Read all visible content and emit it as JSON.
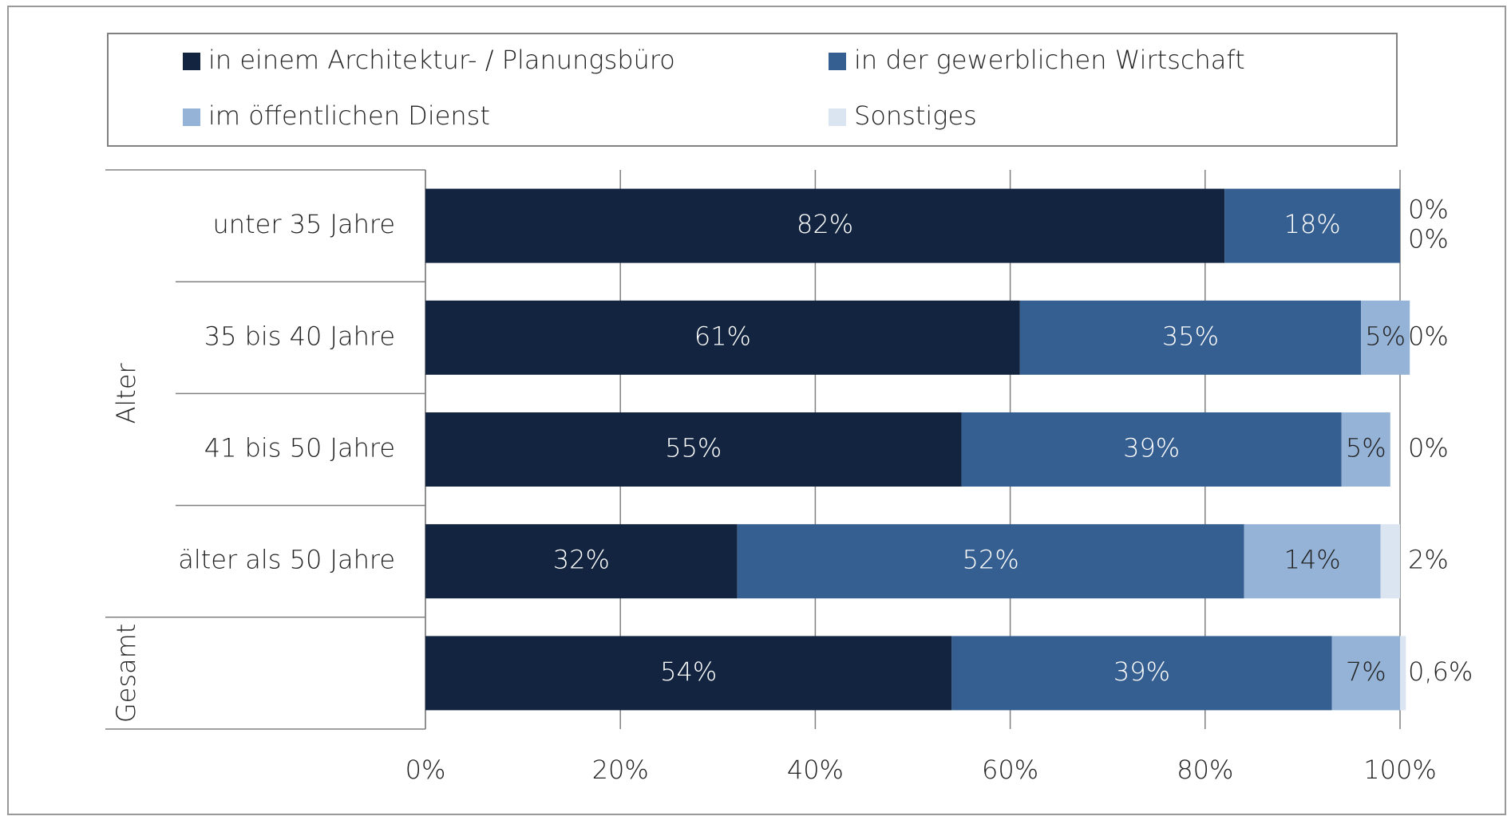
{
  "chart_data": {
    "type": "stacked-bar-horizontal",
    "categories": [
      "unter 35 Jahre",
      "35 bis 40 Jahre",
      "41 bis 50 Jahre",
      "älter als 50 Jahre",
      null
    ],
    "groups": [
      {
        "label": "Alter",
        "size": 4
      },
      {
        "label": "Gesamt",
        "size": 1
      }
    ],
    "series": [
      {
        "name": "in einem Architektur- / Planungsbüro",
        "color": "#12243f",
        "label_color": "#ffffff",
        "values": [
          82,
          61,
          55,
          32,
          54
        ],
        "value_labels": [
          "82%",
          "61%",
          "55%",
          "32%",
          "54%"
        ]
      },
      {
        "name": "in der gewerblichen Wirtschaft",
        "color": "#365f91",
        "label_color": "#ffffff",
        "values": [
          18,
          35,
          39,
          52,
          39
        ],
        "value_labels": [
          "18%",
          "35%",
          "39%",
          "52%",
          "39%"
        ]
      },
      {
        "name": "im öffentlichen Dienst",
        "color": "#95b3d7",
        "label_color": "#222222",
        "values": [
          0,
          5,
          5,
          14,
          7
        ],
        "value_labels": [
          "0%",
          "5%",
          "5%",
          "14%",
          "7%"
        ]
      },
      {
        "name": "Sonstiges",
        "color": "#dbe5f1",
        "label_color": "#222222",
        "values": [
          0,
          0,
          0,
          2,
          0.6
        ],
        "value_labels": [
          "0%",
          "0%",
          "0%",
          "2%",
          "0,6%"
        ]
      }
    ],
    "xlim": [
      0,
      100
    ],
    "xticks": [
      {
        "value": 0,
        "label": "0%"
      },
      {
        "value": 20,
        "label": "20%"
      },
      {
        "value": 40,
        "label": "40%"
      },
      {
        "value": 60,
        "label": "60%"
      },
      {
        "value": 80,
        "label": "80%"
      },
      {
        "value": 100,
        "label": "100%"
      }
    ],
    "grid": true,
    "legend": "top"
  }
}
